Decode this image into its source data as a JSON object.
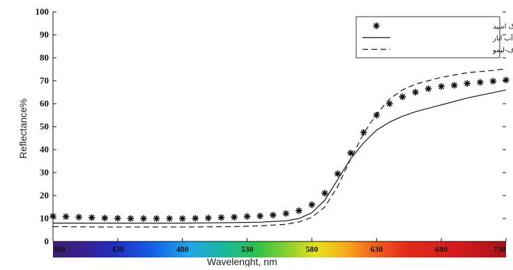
{
  "chart_data": {
    "type": "line",
    "title": "",
    "xlabel": "Wavelenght, nm",
    "ylabel": "Reflectance%",
    "xlim": [
      380,
      730
    ],
    "ylim": [
      0,
      100
    ],
    "x_ticks": [
      "380",
      "430",
      "480",
      "530",
      "580",
      "630",
      "680",
      "730"
    ],
    "y_ticks": [
      "0",
      "10",
      "20",
      "30",
      "40",
      "50",
      "60",
      "70",
      "80",
      "90",
      "100"
    ],
    "grid": false,
    "legend_position": "top-right",
    "spectrum_bar": true,
    "series": [
      {
        "name": "شنگرف-استیک اسید",
        "style": "star-markers",
        "color": "#111111",
        "x": [
          380,
          390,
          400,
          410,
          420,
          430,
          440,
          450,
          460,
          470,
          480,
          490,
          500,
          510,
          520,
          530,
          540,
          550,
          560,
          570,
          580,
          590,
          600,
          610,
          620,
          630,
          640,
          650,
          660,
          670,
          680,
          690,
          700,
          710,
          720,
          730
        ],
        "values": [
          11.0,
          10.8,
          10.6,
          10.4,
          10.2,
          10.1,
          10.0,
          10.0,
          10.0,
          10.0,
          10.0,
          10.1,
          10.2,
          10.4,
          10.6,
          10.9,
          11.1,
          11.5,
          12.2,
          13.4,
          16.0,
          21.0,
          29.5,
          38.5,
          47.5,
          55.0,
          60.0,
          63.0,
          65.0,
          66.5,
          67.5,
          68.0,
          68.8,
          69.3,
          69.8,
          70.3
        ]
      },
      {
        "name": "شنگرف-آب انار",
        "style": "solid",
        "color": "#111111",
        "x": [
          380,
          400,
          420,
          440,
          460,
          480,
          500,
          520,
          540,
          560,
          570,
          580,
          590,
          600,
          610,
          620,
          630,
          640,
          650,
          660,
          680,
          700,
          720,
          730
        ],
        "values": [
          8.0,
          8.0,
          8.0,
          8.0,
          8.0,
          8.0,
          8.1,
          8.2,
          8.4,
          9.0,
          10.0,
          12.5,
          18.0,
          27.0,
          36.0,
          43.0,
          48.5,
          52.0,
          54.5,
          56.5,
          59.5,
          62.5,
          64.8,
          66.0
        ]
      },
      {
        "name": "شنگرف-لیمو",
        "style": "dashed",
        "color": "#111111",
        "x": [
          380,
          400,
          420,
          440,
          460,
          480,
          500,
          520,
          540,
          560,
          570,
          580,
          590,
          600,
          610,
          620,
          630,
          640,
          650,
          660,
          680,
          700,
          720,
          730
        ],
        "values": [
          6.5,
          6.4,
          6.3,
          6.3,
          6.3,
          6.3,
          6.4,
          6.5,
          6.8,
          7.5,
          8.5,
          10.5,
          15.0,
          24.0,
          36.0,
          47.0,
          55.5,
          62.0,
          66.0,
          68.5,
          71.5,
          73.5,
          74.5,
          75.2
        ]
      }
    ]
  }
}
